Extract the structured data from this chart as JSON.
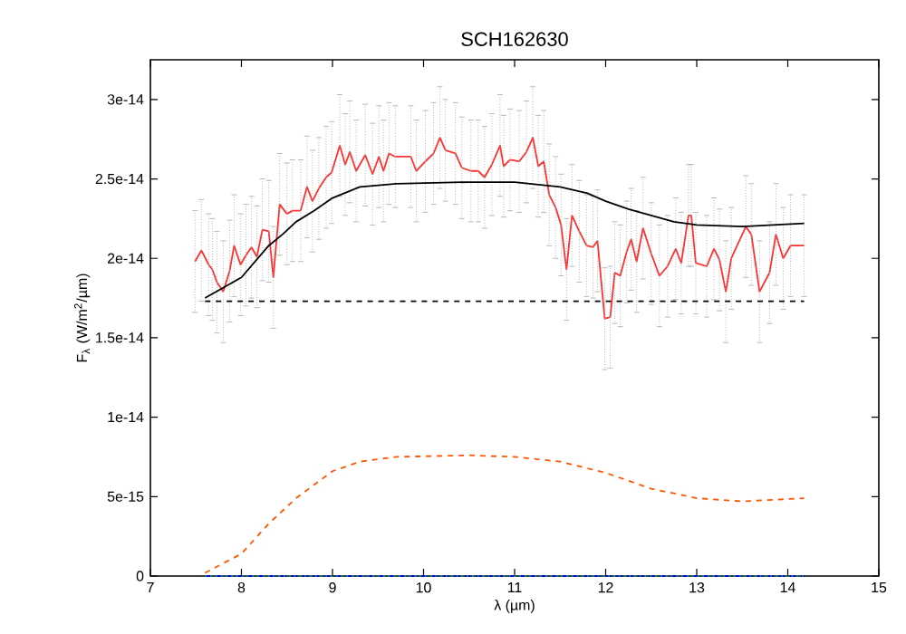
{
  "chart_data": {
    "type": "line",
    "title": "SCH162630",
    "xlabel": "λ (µm)",
    "ylabel": "F$_{λ}$ (W/m$^{2}$/µm)",
    "xlim": [
      7,
      15
    ],
    "xticks": [
      7,
      8,
      9,
      10,
      11,
      12,
      13,
      14,
      15
    ],
    "ylim": [
      0,
      3.25e-14
    ],
    "yticks": [
      {
        "value": 0,
        "label": "0"
      },
      {
        "value": 5e-15,
        "label": "5e-15"
      },
      {
        "value": 1e-14,
        "label": "1e-14"
      },
      {
        "value": 1.5e-14,
        "label": "1.5e-14"
      },
      {
        "value": 2e-14,
        "label": "2e-14"
      },
      {
        "value": 2.5e-14,
        "label": "2.5e-14"
      },
      {
        "value": 3e-14,
        "label": "3e-14"
      }
    ],
    "series": [
      {
        "color": "#ff3030",
        "x": [
          7.49,
          7.56,
          7.64,
          7.68,
          7.73,
          7.8,
          7.87,
          7.92,
          7.99,
          8.05,
          8.11,
          8.17,
          8.23,
          8.3,
          8.35,
          8.42,
          8.5,
          8.56,
          8.65,
          8.72,
          8.78,
          8.85,
          8.93,
          8.99,
          9.08,
          9.14,
          9.19,
          9.26,
          9.36,
          9.44,
          9.51,
          9.56,
          9.62,
          9.69,
          9.86,
          9.92,
          10.02,
          10.11,
          10.18,
          10.24,
          10.35,
          10.42,
          10.52,
          10.6,
          10.67,
          10.75,
          10.84,
          10.88,
          10.95,
          11.05,
          11.13,
          11.2,
          11.26,
          11.32,
          11.38,
          11.45,
          11.51,
          11.57,
          11.63,
          11.71,
          11.79,
          11.86,
          11.91,
          11.99,
          12.05,
          12.1,
          12.16,
          12.23,
          12.28,
          12.34,
          12.41,
          12.5,
          12.59,
          12.68,
          12.77,
          12.83,
          12.91,
          12.94,
          12.99,
          13.11,
          13.19,
          13.25,
          13.32,
          13.38,
          13.54,
          13.6,
          13.69,
          13.8,
          13.87,
          13.95,
          14.03,
          14.18
        ],
        "values": [
          1.98e-14,
          2.05e-14,
          1.96e-14,
          1.93e-14,
          1.85e-14,
          1.79e-14,
          1.92e-14,
          2.08e-14,
          1.96e-14,
          2.02e-14,
          2.07e-14,
          2.01e-14,
          2.18e-14,
          2.17e-14,
          1.88e-14,
          2.34e-14,
          2.28e-14,
          2.3e-14,
          2.3e-14,
          2.45e-14,
          2.36e-14,
          2.44e-14,
          2.51e-14,
          2.54e-14,
          2.71e-14,
          2.59e-14,
          2.67e-14,
          2.55e-14,
          2.65e-14,
          2.53e-14,
          2.64e-14,
          2.55e-14,
          2.66e-14,
          2.64e-14,
          2.64e-14,
          2.55e-14,
          2.61e-14,
          2.66e-14,
          2.76e-14,
          2.68e-14,
          2.66e-14,
          2.57e-14,
          2.55e-14,
          2.55e-14,
          2.51e-14,
          2.59e-14,
          2.71e-14,
          2.58e-14,
          2.62e-14,
          2.61e-14,
          2.67e-14,
          2.76e-14,
          2.58e-14,
          2.61e-14,
          2.4e-14,
          2.32e-14,
          2.21e-14,
          1.93e-14,
          2.27e-14,
          2.17e-14,
          2.08e-14,
          2.07e-14,
          2.11e-14,
          1.62e-14,
          1.63e-14,
          1.91e-14,
          1.89e-14,
          2.04e-14,
          2.12e-14,
          1.98e-14,
          2.19e-14,
          2.03e-14,
          1.89e-14,
          1.95e-14,
          2.06e-14,
          1.97e-14,
          2.27e-14,
          2.27e-14,
          1.97e-14,
          1.95e-14,
          2.06e-14,
          1.99e-14,
          1.79e-14,
          2e-14,
          2.2e-14,
          2.15e-14,
          1.79e-14,
          1.91e-14,
          2.15e-14,
          2e-14,
          2.08e-14,
          2.08e-14
        ],
        "errors": [
          3.2e-15,
          3.2e-15,
          3.2e-15,
          3.2e-15,
          3.2e-15,
          3.2e-15,
          3.2e-15,
          3.2e-15,
          3.2e-15,
          3.2e-15,
          3.2e-15,
          3.2e-15,
          3.2e-15,
          3.2e-15,
          3.2e-15,
          3.2e-15,
          3.2e-15,
          3.2e-15,
          3.2e-15,
          3.2e-15,
          3.2e-15,
          3.2e-15,
          3.2e-15,
          3.2e-15,
          3.2e-15,
          3.2e-15,
          3.2e-15,
          3.2e-15,
          3.2e-15,
          3.2e-15,
          3.2e-15,
          3.2e-15,
          3.2e-15,
          3.2e-15,
          3.2e-15,
          3.2e-15,
          3.2e-15,
          3.2e-15,
          3.2e-15,
          3.2e-15,
          3.2e-15,
          3.2e-15,
          3.2e-15,
          3.2e-15,
          3.2e-15,
          3.2e-15,
          3.2e-15,
          3.2e-15,
          3.2e-15,
          3.2e-15,
          3.2e-15,
          3.2e-15,
          3.2e-15,
          3.2e-15,
          3.2e-15,
          3.2e-15,
          3.2e-15,
          3.2e-15,
          3.2e-15,
          3.2e-15,
          3.2e-15,
          3.2e-15,
          3.2e-15,
          3.2e-15,
          3.2e-15,
          3.2e-15,
          3.2e-15,
          3.2e-15,
          3.2e-15,
          3.2e-15,
          3.2e-15,
          3.2e-15,
          3.2e-15,
          3.2e-15,
          3.2e-15,
          3.2e-15,
          3.2e-15,
          3.2e-15,
          3.2e-15,
          3.2e-15,
          3.2e-15,
          3.2e-15,
          3.2e-15,
          3.2e-15,
          3.2e-15,
          3.2e-15,
          3.2e-15,
          3.2e-15,
          3.2e-15,
          3.2e-15,
          3.2e-15,
          3.2e-15
        ]
      },
      {
        "color": "#000000",
        "x": [
          7.6,
          8.0,
          8.15,
          8.3,
          8.45,
          8.6,
          8.8,
          9.0,
          9.3,
          9.7,
          10.5,
          11.0,
          11.5,
          11.8,
          12.0,
          12.25,
          12.5,
          12.75,
          13.0,
          13.5,
          14.18
        ],
        "values": [
          1.75e-14,
          1.88e-14,
          1.98e-14,
          2.08e-14,
          2.15e-14,
          2.23e-14,
          2.3e-14,
          2.38e-14,
          2.45e-14,
          2.47e-14,
          2.48e-14,
          2.48e-14,
          2.45e-14,
          2.41e-14,
          2.36e-14,
          2.31e-14,
          2.27e-14,
          2.23e-14,
          2.21e-14,
          2.2e-14,
          2.22e-14
        ]
      },
      {
        "color": "#000000",
        "line_style": "dashed",
        "x": [
          7.6,
          14.18
        ],
        "values": [
          1.73e-14,
          1.73e-14
        ]
      },
      {
        "color": "#ff5500",
        "line_style": "dashed",
        "x": [
          7.6,
          8.0,
          8.3,
          8.6,
          9.0,
          9.3,
          9.7,
          10.5,
          11.0,
          11.5,
          12.0,
          12.5,
          13.0,
          13.5,
          14.18
        ],
        "values": [
          2e-16,
          1.4e-15,
          3.3e-15,
          4.9e-15,
          6.6e-15,
          7.2e-15,
          7.5e-15,
          7.6e-15,
          7.5e-15,
          7.2e-15,
          6.5e-15,
          5.5e-15,
          4.9e-15,
          4.7e-15,
          4.9e-15
        ]
      },
      {
        "color": "#0000cc",
        "line_style": "dashed",
        "x": [
          7.6,
          14.18
        ],
        "values": [
          0,
          0
        ]
      },
      {
        "color": "#008b8b",
        "line_style": "dotted",
        "x": [
          7.6,
          14.18
        ],
        "values": [
          0,
          0
        ]
      }
    ]
  }
}
